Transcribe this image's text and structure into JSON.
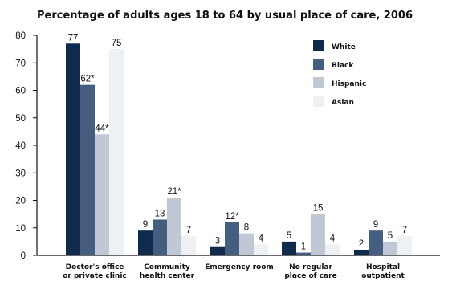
{
  "chart_data": {
    "type": "bar",
    "title": "Percentage of adults ages 18 to 64 by usual place of care, 2006",
    "xlabel": "",
    "ylabel": "",
    "ylim": [
      0,
      80
    ],
    "yticks": [
      "0",
      "10",
      "20",
      "30",
      "40",
      "50",
      "60",
      "70",
      "80"
    ],
    "categories": [
      [
        "Doctor's office",
        "or private clinic"
      ],
      [
        "Community",
        "health center"
      ],
      [
        "Emergency room"
      ],
      [
        "No regular",
        "place of care"
      ],
      [
        "Hospital",
        "outpatient"
      ]
    ],
    "series": [
      {
        "name": "White",
        "color": "#0f2a4d",
        "values": [
          77,
          9,
          3,
          5,
          2
        ],
        "labels": [
          "77",
          "9",
          "3",
          "5",
          "2"
        ]
      },
      {
        "name": "Black",
        "color": "#455d7f",
        "values": [
          62,
          13,
          12,
          1,
          9
        ],
        "labels": [
          "62*",
          "13",
          "12*",
          "1",
          "9"
        ]
      },
      {
        "name": "Hispanic",
        "color": "#bfc8d4",
        "values": [
          44,
          21,
          8,
          15,
          5
        ],
        "labels": [
          "44*",
          "21*",
          "8",
          "15",
          "5"
        ]
      },
      {
        "name": "Asian",
        "color": "#eef1f4",
        "values": [
          75,
          7,
          4,
          4,
          7
        ],
        "labels": [
          "75",
          "7",
          "4",
          "4",
          "7"
        ]
      }
    ],
    "legend_position": "top-right",
    "grid": false
  }
}
